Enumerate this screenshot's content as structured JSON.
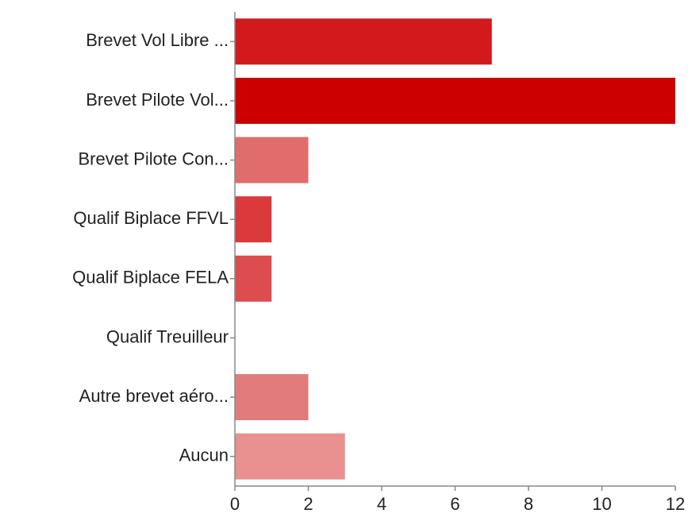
{
  "chart_data": {
    "type": "barh",
    "categories": [
      "Brevet Vol Libre ...",
      "Brevet Pilote Vol...",
      "Brevet Pilote Con...",
      "Qualif Biplace FFVL",
      "Qualif Biplace FELA",
      "Qualif Treuilleur",
      "Autre brevet aéro...",
      "Aucun"
    ],
    "values": [
      7,
      12,
      2,
      1,
      1,
      0,
      2,
      3
    ],
    "colors": [
      "#d3191c",
      "#cc0000",
      "#e06c6c",
      "#da3a3c",
      "#dd4c4e",
      "#de5c5c",
      "#e27b7b",
      "#e99191"
    ],
    "xlim": [
      0,
      12
    ],
    "xticks": [
      0,
      2,
      4,
      6,
      8,
      10,
      12
    ],
    "grid": false
  }
}
